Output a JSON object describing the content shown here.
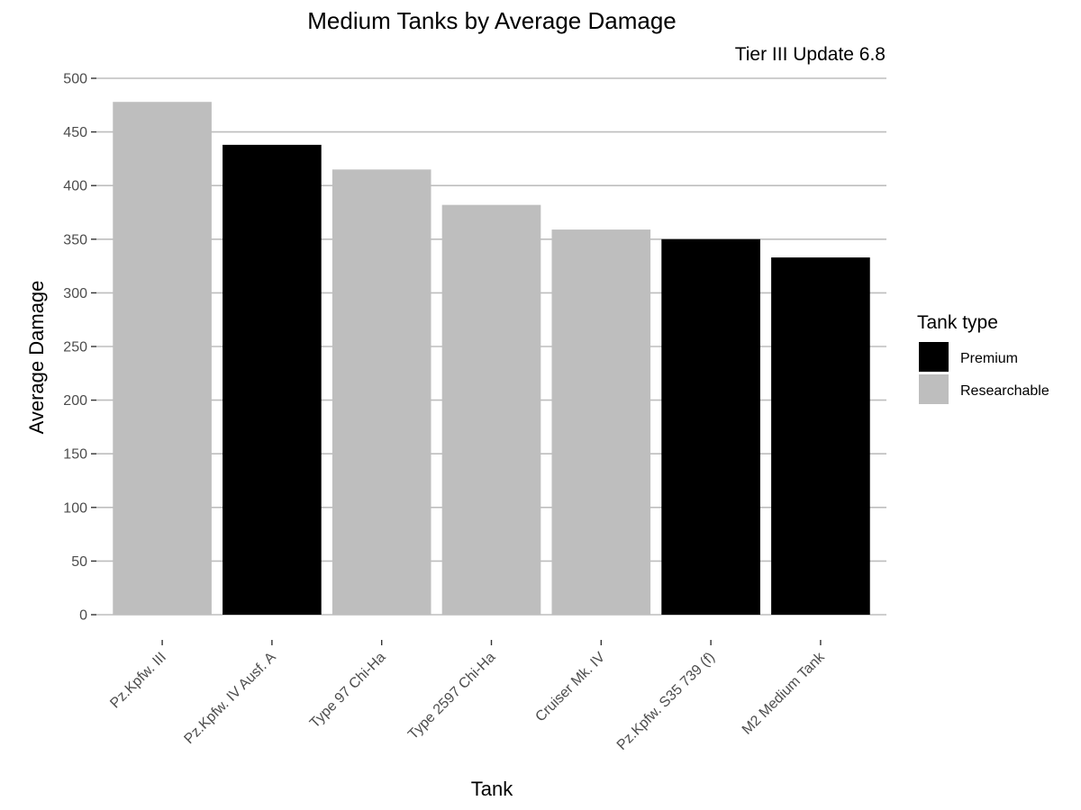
{
  "chart_data": {
    "type": "bar",
    "title": "Medium Tanks by Average Damage",
    "subtitle": "Tier III Update 6.8",
    "xlabel": "Tank",
    "ylabel": "Average Damage",
    "ylim": [
      0,
      500
    ],
    "yticks": [
      0,
      50,
      100,
      150,
      200,
      250,
      300,
      350,
      400,
      450,
      500
    ],
    "grid": "horizontal",
    "legend_position": "right",
    "legend_title": "Tank type",
    "legend": [
      {
        "label": "Premium",
        "color": "#000000"
      },
      {
        "label": "Researchable",
        "color": "#bebebe"
      }
    ],
    "categories": [
      "Pz.Kpfw. III",
      "Pz.Kpfw. IV Ausf. A",
      "Type 97 Chi-Ha",
      "Type 2597 Chi-Ha",
      "Cruiser Mk. IV",
      "Pz.Kpfw. S35 739 (f)",
      "M2 Medium Tank"
    ],
    "values": [
      478,
      438,
      415,
      382,
      359,
      350,
      333
    ],
    "groups": [
      "Researchable",
      "Premium",
      "Researchable",
      "Researchable",
      "Researchable",
      "Premium",
      "Premium"
    ]
  }
}
